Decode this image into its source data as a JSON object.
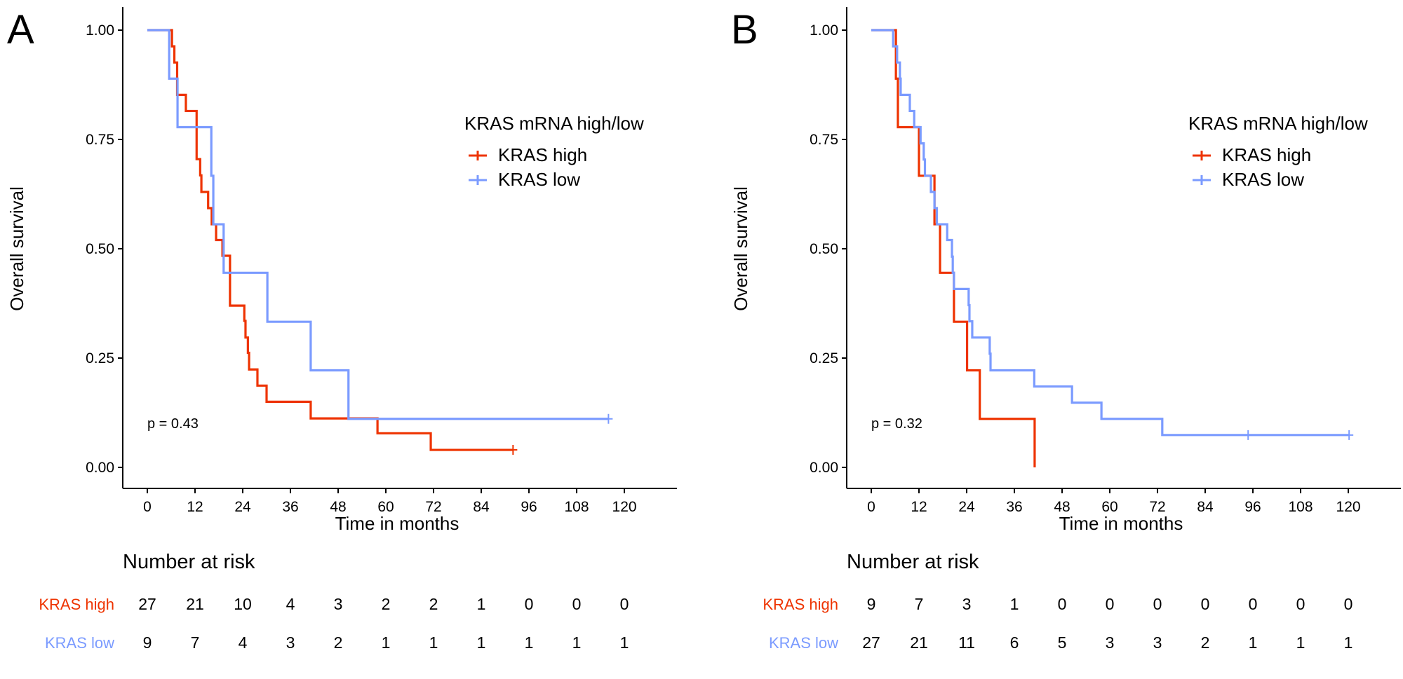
{
  "figure": {
    "colors": {
      "high": "#EE3300",
      "low": "#7B9BFF",
      "axis": "#000000"
    }
  },
  "chart_data": [
    {
      "type": "line",
      "subtype": "kaplan-meier",
      "panel": "A",
      "title": "",
      "xlabel": "Time in months",
      "ylabel": "Overall survival",
      "xlim": [
        -5,
        133
      ],
      "ylim": [
        -0.04,
        1.04
      ],
      "xticks": [
        0,
        12,
        24,
        36,
        48,
        60,
        72,
        84,
        96,
        108,
        120
      ],
      "yticks": [
        "0.00",
        "0.25",
        "0.50",
        "0.75",
        "1.00"
      ],
      "ytick_values": [
        0,
        0.25,
        0.5,
        0.75,
        1.0
      ],
      "grid": false,
      "legend": {
        "title": "KRAS mRNA high/low",
        "placement": "top-right",
        "entries": [
          "KRAS high",
          "KRAS low"
        ]
      },
      "annotation": "p = 0.43",
      "series": [
        {
          "name": "KRAS high",
          "color_key": "high",
          "steps": [
            [
              0,
              1.0
            ],
            [
              6.2,
              0.963
            ],
            [
              6.8,
              0.926
            ],
            [
              7.5,
              0.852
            ],
            [
              9.7,
              0.815
            ],
            [
              12.4,
              0.778
            ],
            [
              12.4,
              0.705
            ],
            [
              13.3,
              0.668
            ],
            [
              13.6,
              0.63
            ],
            [
              15.3,
              0.593
            ],
            [
              16.2,
              0.556
            ],
            [
              17.3,
              0.52
            ],
            [
              18.9,
              0.484
            ],
            [
              20.8,
              0.37
            ],
            [
              24.4,
              0.335
            ],
            [
              24.7,
              0.297
            ],
            [
              25.3,
              0.262
            ],
            [
              25.6,
              0.224
            ],
            [
              27.7,
              0.187
            ],
            [
              30.0,
              0.15
            ],
            [
              41.1,
              0.112
            ],
            [
              57.9,
              0.078
            ],
            [
              71.3,
              0.04
            ]
          ],
          "end": 92,
          "censored": [
            [
              92,
              0.04
            ]
          ]
        },
        {
          "name": "KRAS low",
          "color_key": "low",
          "steps": [
            [
              0,
              1.0
            ],
            [
              5.5,
              0.889
            ],
            [
              7.6,
              0.778
            ],
            [
              16.1,
              0.667
            ],
            [
              16.6,
              0.556
            ],
            [
              19.2,
              0.445
            ],
            [
              30.2,
              0.333
            ],
            [
              41.1,
              0.222
            ],
            [
              50.6,
              0.111
            ]
          ],
          "end": 116,
          "censored": [
            [
              116,
              0.111
            ]
          ]
        }
      ],
      "risk_table": {
        "title": "Number at risk",
        "times": [
          0,
          12,
          24,
          36,
          48,
          60,
          72,
          84,
          96,
          108,
          120
        ],
        "rows": [
          {
            "label": "KRAS high",
            "color_key": "high",
            "values": [
              27,
              21,
              10,
              4,
              3,
              2,
              2,
              1,
              0,
              0,
              0
            ]
          },
          {
            "label": "KRAS low",
            "color_key": "low",
            "values": [
              9,
              7,
              4,
              3,
              2,
              1,
              1,
              1,
              1,
              1,
              1
            ]
          }
        ]
      }
    },
    {
      "type": "line",
      "subtype": "kaplan-meier",
      "panel": "B",
      "title": "",
      "xlabel": "Time in months",
      "ylabel": "Overall survival",
      "xlim": [
        -5,
        133
      ],
      "ylim": [
        -0.04,
        1.04
      ],
      "xticks": [
        0,
        12,
        24,
        36,
        48,
        60,
        72,
        84,
        96,
        108,
        120
      ],
      "yticks": [
        "0.00",
        "0.25",
        "0.50",
        "0.75",
        "1.00"
      ],
      "ytick_values": [
        0,
        0.25,
        0.5,
        0.75,
        1.0
      ],
      "grid": false,
      "legend": {
        "title": "KRAS mRNA high/low",
        "placement": "top-right",
        "entries": [
          "KRAS high",
          "KRAS low"
        ]
      },
      "annotation": "p = 0.32",
      "series": [
        {
          "name": "KRAS high",
          "color_key": "high",
          "steps": [
            [
              0,
              1.0
            ],
            [
              6.2,
              0.889
            ],
            [
              6.7,
              0.778
            ],
            [
              12.0,
              0.667
            ],
            [
              15.9,
              0.556
            ],
            [
              17.3,
              0.445
            ],
            [
              20.8,
              0.333
            ],
            [
              24.1,
              0.222
            ],
            [
              27.3,
              0.111
            ],
            [
              41.1,
              0.0
            ]
          ],
          "end": 41.1,
          "censored": []
        },
        {
          "name": "KRAS low",
          "color_key": "low",
          "steps": [
            [
              0,
              1.0
            ],
            [
              5.5,
              0.963
            ],
            [
              6.5,
              0.926
            ],
            [
              7.2,
              0.889
            ],
            [
              7.4,
              0.852
            ],
            [
              9.7,
              0.815
            ],
            [
              10.8,
              0.778
            ],
            [
              12.4,
              0.741
            ],
            [
              13.2,
              0.704
            ],
            [
              13.5,
              0.667
            ],
            [
              15.0,
              0.63
            ],
            [
              15.9,
              0.593
            ],
            [
              16.5,
              0.556
            ],
            [
              19.1,
              0.52
            ],
            [
              20.3,
              0.482
            ],
            [
              20.5,
              0.445
            ],
            [
              20.8,
              0.408
            ],
            [
              24.5,
              0.371
            ],
            [
              24.7,
              0.334
            ],
            [
              25.4,
              0.297
            ],
            [
              29.8,
              0.26
            ],
            [
              30.0,
              0.222
            ],
            [
              41.0,
              0.185
            ],
            [
              50.5,
              0.148
            ],
            [
              57.9,
              0.111
            ],
            [
              73.2,
              0.074
            ]
          ],
          "end": 120.2,
          "censored": [
            [
              94.8,
              0.074
            ],
            [
              120.2,
              0.074
            ]
          ]
        }
      ],
      "risk_table": {
        "title": "Number at risk",
        "times": [
          0,
          12,
          24,
          36,
          48,
          60,
          72,
          84,
          96,
          108,
          120
        ],
        "rows": [
          {
            "label": "KRAS high",
            "color_key": "high",
            "values": [
              9,
              7,
              3,
              1,
              0,
              0,
              0,
              0,
              0,
              0,
              0
            ]
          },
          {
            "label": "KRAS low",
            "color_key": "low",
            "values": [
              27,
              21,
              11,
              6,
              5,
              3,
              3,
              2,
              1,
              1,
              1
            ]
          }
        ]
      }
    }
  ]
}
